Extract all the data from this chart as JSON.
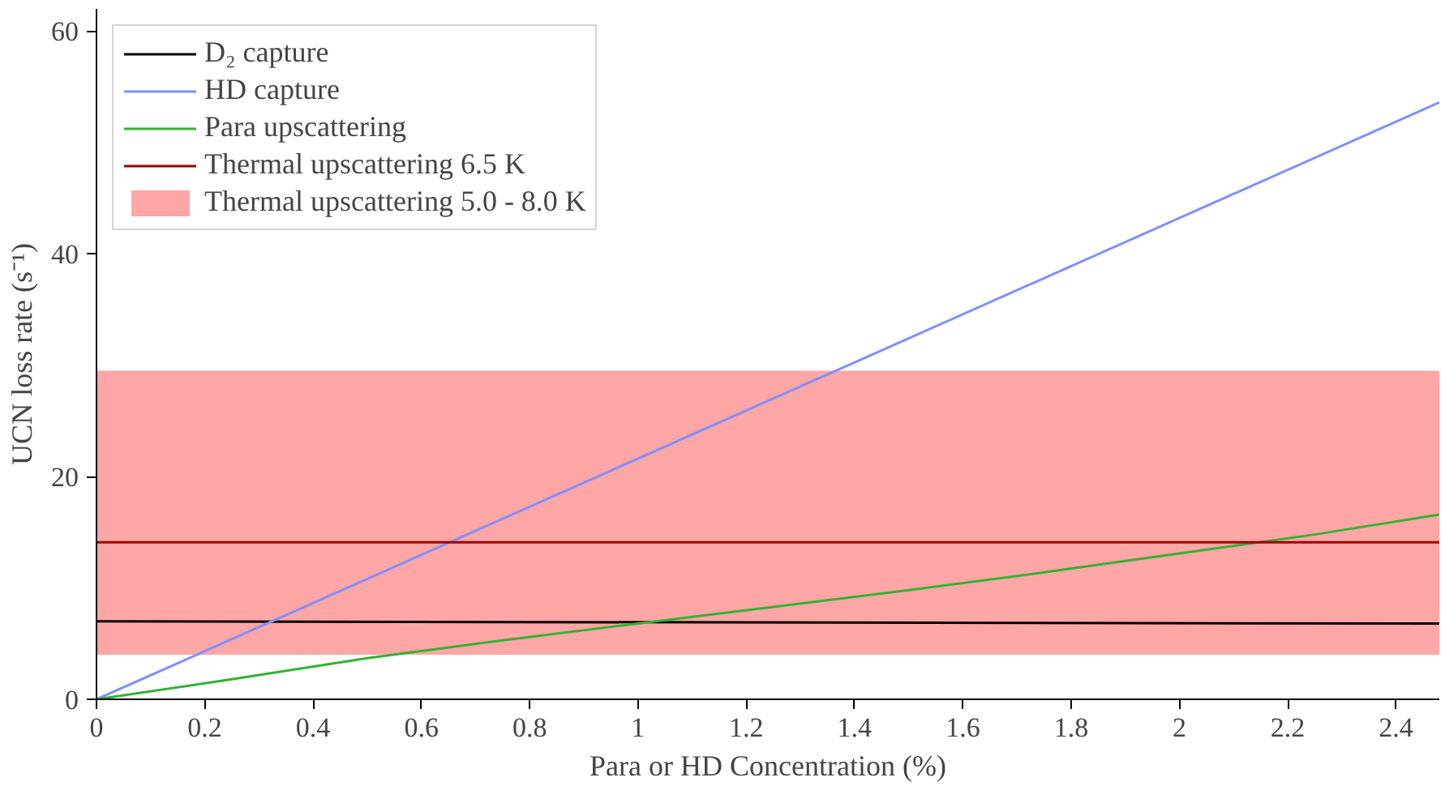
{
  "chart_data": {
    "type": "line",
    "xlabel": "Para or HD Concentration (%)",
    "ylabel": "UCN loss rate (s⁻¹)",
    "xlim": [
      0,
      2.48
    ],
    "ylim": [
      0,
      62
    ],
    "xticks": [
      0,
      0.2,
      0.4,
      0.6,
      0.8,
      1,
      1.2,
      1.4,
      1.6,
      1.8,
      2,
      2.2,
      2.4
    ],
    "yticks": [
      0,
      20,
      40,
      60
    ],
    "series": [
      {
        "name": "D₂ capture",
        "color": "#000000",
        "x": [
          0,
          2.48
        ],
        "values": [
          7.0,
          6.8
        ]
      },
      {
        "name": "HD capture",
        "color": "#7f8fff",
        "x": [
          0,
          2.48
        ],
        "values": [
          0,
          53.6
        ]
      },
      {
        "name": "Para upscattering",
        "color": "#33b233",
        "x": [
          0,
          0.25,
          0.5,
          0.75,
          1.0,
          1.25,
          1.5,
          1.75,
          2.0,
          2.25,
          2.48
        ],
        "values": [
          0,
          1.8,
          3.7,
          5.3,
          6.8,
          8.3,
          9.8,
          11.4,
          13.1,
          14.8,
          16.6
        ]
      },
      {
        "name": "Thermal upscattering 6.5 K",
        "color": "#a00000",
        "x": [
          0,
          2.48
        ],
        "values": [
          14.1,
          14.1
        ]
      }
    ],
    "bands": [
      {
        "axis": "y",
        "from": 4,
        "to": 29.5,
        "label": "Thermal upscattering 5.0 - 8.0 K",
        "color": "#ff8080"
      }
    ],
    "legend": "top left",
    "grid": false
  }
}
